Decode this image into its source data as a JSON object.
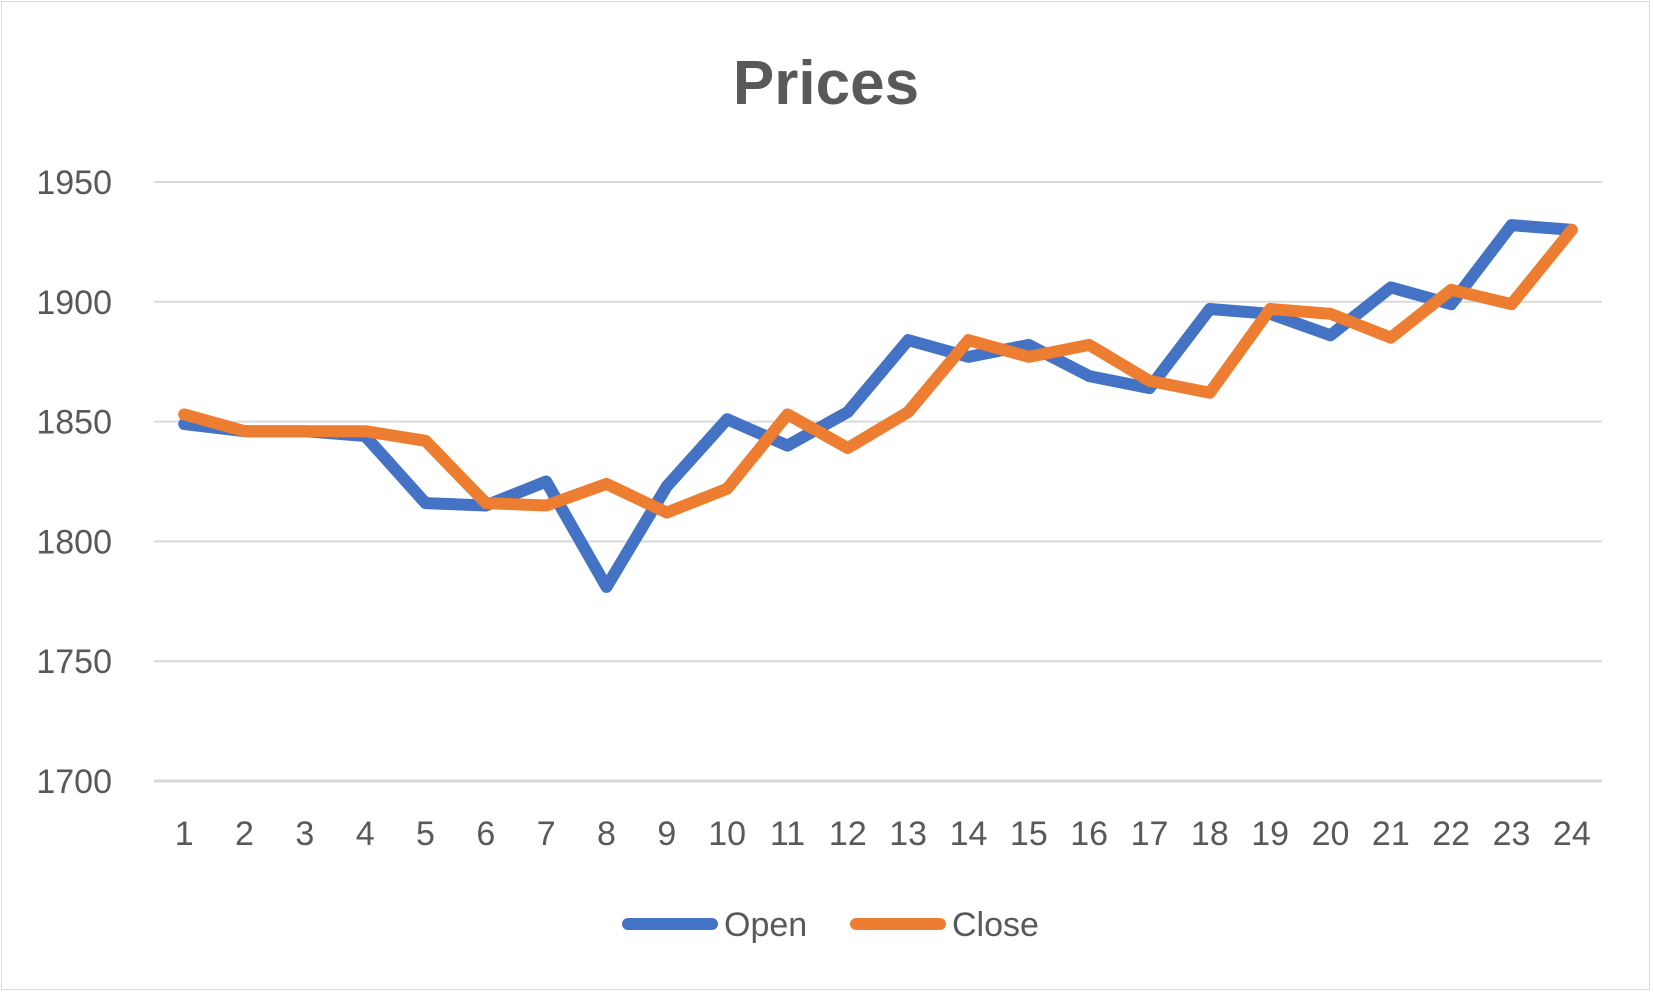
{
  "chart_data": {
    "type": "line",
    "title": "Prices",
    "xlabel": "",
    "ylabel": "",
    "categories": [
      "1",
      "2",
      "3",
      "4",
      "5",
      "6",
      "7",
      "8",
      "9",
      "10",
      "11",
      "12",
      "13",
      "14",
      "15",
      "16",
      "17",
      "18",
      "19",
      "20",
      "21",
      "22",
      "23",
      "24"
    ],
    "ylim": [
      1700,
      1950
    ],
    "yticks": [
      1700,
      1750,
      1800,
      1850,
      1900,
      1950
    ],
    "grid": true,
    "legend": "bottom",
    "series": [
      {
        "name": "Open",
        "color": "#4472C4",
        "values": [
          1849,
          1846,
          1846,
          1844,
          1816,
          1815,
          1825,
          1781,
          1823,
          1851,
          1840,
          1854,
          1884,
          1877,
          1882,
          1869,
          1864,
          1897,
          1895,
          1886,
          1906,
          1899,
          1932,
          1930
        ]
      },
      {
        "name": "Close",
        "color": "#ED7D31",
        "values": [
          1853,
          1846,
          1846,
          1846,
          1842,
          1816,
          1815,
          1824,
          1812,
          1822,
          1853,
          1839,
          1854,
          1884,
          1877,
          1882,
          1867,
          1862,
          1897,
          1895,
          1885,
          1905,
          1899,
          1930
        ]
      }
    ]
  }
}
